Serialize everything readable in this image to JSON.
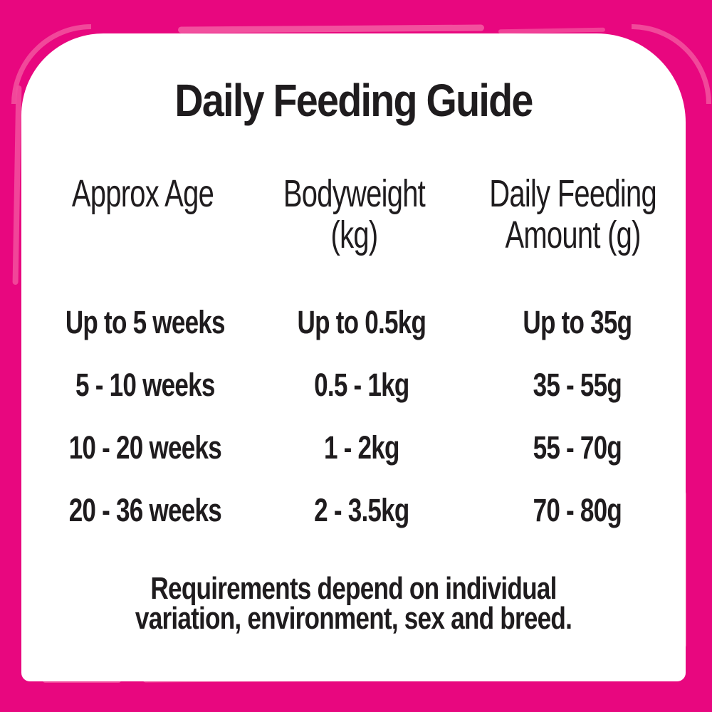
{
  "title": "Daily Feeding Guide",
  "table": {
    "columns": [
      {
        "label": "Approx Age",
        "lines": [
          "Approx Age",
          ""
        ]
      },
      {
        "label": "Bodyweight (kg)",
        "lines": [
          "Bodyweight",
          "(kg)"
        ]
      },
      {
        "label": "Daily Feeding Amount (g)",
        "lines": [
          "Daily Feeding",
          "Amount (g)"
        ]
      }
    ],
    "rows": [
      [
        "Up to 5 weeks",
        "Up to 0.5kg",
        "Up to 35g"
      ],
      [
        "5 - 10 weeks",
        "0.5 - 1kg",
        "35 - 55g"
      ],
      [
        "10 - 20 weeks",
        "1 - 2kg",
        "55 - 70g"
      ],
      [
        "20 - 36 weeks",
        "2 - 3.5kg",
        "70 - 80g"
      ]
    ]
  },
  "footnote": {
    "text": "Requirements depend on individual variation, environment, sex and breed.",
    "lines": [
      "Requirements depend on individual",
      "variation, environment, sex and breed."
    ]
  },
  "colors": {
    "background_pink": "#E8077F",
    "brush_highlight": "#F2509E",
    "panel_white": "#FFFFFF",
    "text_dark": "#1F1C1E"
  }
}
